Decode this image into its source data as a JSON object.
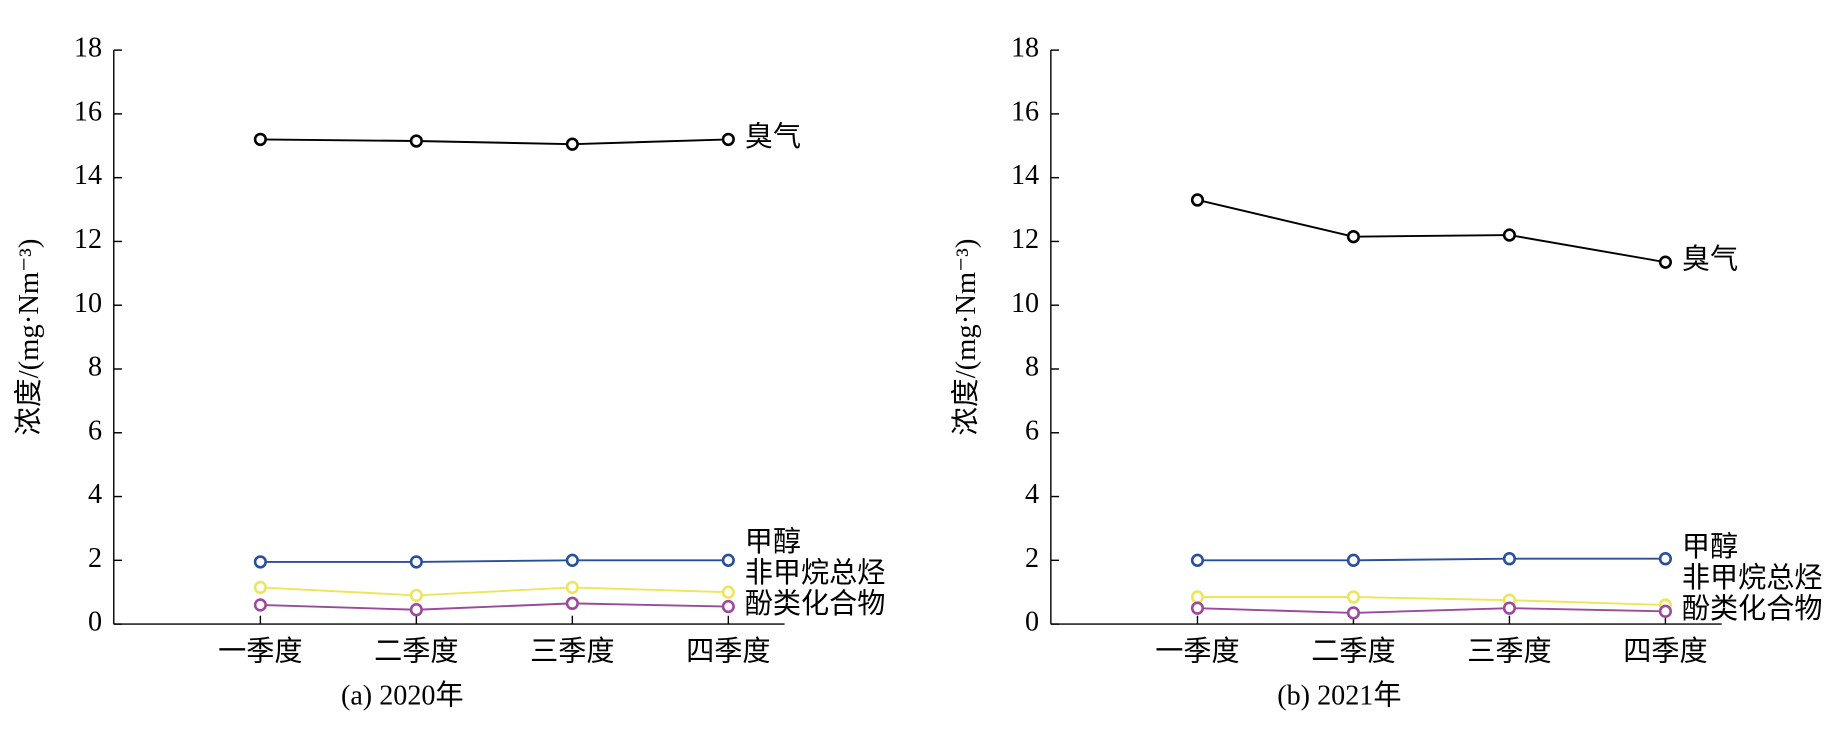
{
  "chart_data": [
    {
      "type": "line",
      "title": "(a) 2020年",
      "ylabel": "浓度/(mg·Nm⁻³)",
      "categories": [
        "一季度",
        "二季度",
        "三季度",
        "四季度"
      ],
      "ylim": [
        0,
        18
      ],
      "yticks": [
        0,
        2,
        4,
        6,
        8,
        10,
        12,
        14,
        16,
        18
      ],
      "series": [
        {
          "name": "臭气",
          "color": "#000000",
          "values": [
            15.2,
            15.15,
            15.05,
            15.2
          ]
        },
        {
          "name": "甲醇",
          "color": "#2a4f9a",
          "values": [
            1.95,
            1.95,
            2.0,
            2.0
          ]
        },
        {
          "name": "非甲烷总烃",
          "color": "#ece65a",
          "values": [
            1.15,
            0.9,
            1.15,
            1.0
          ]
        },
        {
          "name": "酚类化合物",
          "color": "#9b4a9b",
          "values": [
            0.6,
            0.45,
            0.65,
            0.55
          ]
        }
      ]
    },
    {
      "type": "line",
      "title": "(b) 2021年",
      "ylabel": "浓度/(mg·Nm⁻³)",
      "categories": [
        "一季度",
        "二季度",
        "三季度",
        "四季度"
      ],
      "ylim": [
        0,
        18
      ],
      "yticks": [
        0,
        2,
        4,
        6,
        8,
        10,
        12,
        14,
        16,
        18
      ],
      "series": [
        {
          "name": "臭气",
          "color": "#000000",
          "values": [
            13.3,
            12.15,
            12.2,
            11.35
          ]
        },
        {
          "name": "甲醇",
          "color": "#2a4f9a",
          "values": [
            2.0,
            2.0,
            2.05,
            2.05
          ]
        },
        {
          "name": "非甲烷总烃",
          "color": "#ece65a",
          "values": [
            0.85,
            0.85,
            0.75,
            0.6
          ]
        },
        {
          "name": "酚类化合物",
          "color": "#9b4a9b",
          "values": [
            0.5,
            0.35,
            0.5,
            0.4
          ]
        }
      ]
    }
  ]
}
